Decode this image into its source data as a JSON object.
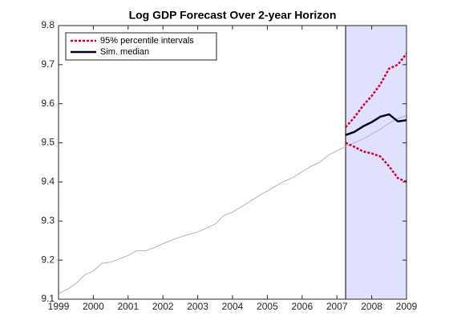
{
  "chart_data": {
    "type": "line",
    "title": "Log GDP Forecast Over 2-year Horizon",
    "xlim": [
      1999,
      2009
    ],
    "xticks": [
      1999,
      2000,
      2001,
      2002,
      2003,
      2004,
      2005,
      2006,
      2007,
      2008,
      2009
    ],
    "ylim": [
      9.1,
      9.8
    ],
    "yticks": [
      9.1,
      9.2,
      9.3,
      9.4,
      9.5,
      9.6,
      9.7,
      9.8
    ],
    "highlight_x": [
      2007.25,
      2009
    ],
    "highlight_color": "#e0e0ff",
    "legend": "upper left",
    "series": [
      {
        "color": "#b4b4b4",
        "width": 1,
        "style": "solid",
        "x": [
          1999,
          1999.25,
          1999.5,
          1999.75,
          2000,
          2000.25,
          2000.5,
          2000.75,
          2001,
          2001.25,
          2001.5,
          2001.75,
          2002,
          2002.25,
          2002.5,
          2002.75,
          2003,
          2003.25,
          2003.5,
          2003.75,
          2004,
          2004.25,
          2004.5,
          2004.75,
          2005,
          2005.25,
          2005.5,
          2005.75,
          2006,
          2006.25,
          2006.5,
          2006.75,
          2007,
          2007.25,
          2007.5,
          2007.75,
          2008,
          2008.25,
          2008.5,
          2008.75,
          2009
        ],
        "values": [
          9.115,
          9.125,
          9.14,
          9.162,
          9.172,
          9.192,
          9.195,
          9.203,
          9.212,
          9.224,
          9.224,
          9.232,
          9.242,
          9.251,
          9.259,
          9.266,
          9.272,
          9.282,
          9.292,
          9.314,
          9.323,
          9.336,
          9.35,
          9.364,
          9.377,
          9.39,
          9.402,
          9.412,
          9.426,
          9.44,
          9.45,
          9.468,
          9.48,
          9.49,
          9.5,
          9.51,
          9.522,
          9.535,
          9.55,
          9.562,
          9.57
        ]
      },
      {
        "name": "95% percentile intervals",
        "color": "#d4002a",
        "width": 2.5,
        "style": "dotted",
        "x": [
          2007.25,
          2007.5,
          2007.75,
          2008,
          2008.25,
          2008.5,
          2008.75,
          2009
        ],
        "values": [
          9.54,
          9.565,
          9.595,
          9.62,
          9.65,
          9.69,
          9.7,
          9.728
        ]
      },
      {
        "color": "#d4002a",
        "width": 2.5,
        "style": "dotted",
        "x": [
          2007.25,
          2007.5,
          2007.75,
          2008,
          2008.25,
          2008.5,
          2008.75,
          2009
        ],
        "values": [
          9.5,
          9.49,
          9.478,
          9.473,
          9.465,
          9.44,
          9.41,
          9.4
        ]
      },
      {
        "name": "Sim. median",
        "color": "#000018",
        "width": 2.5,
        "style": "solid",
        "x": [
          2007.25,
          2007.5,
          2007.75,
          2008,
          2008.25,
          2008.5,
          2008.75,
          2009
        ],
        "values": [
          9.52,
          9.528,
          9.542,
          9.553,
          9.567,
          9.573,
          9.555,
          9.558
        ]
      }
    ]
  }
}
